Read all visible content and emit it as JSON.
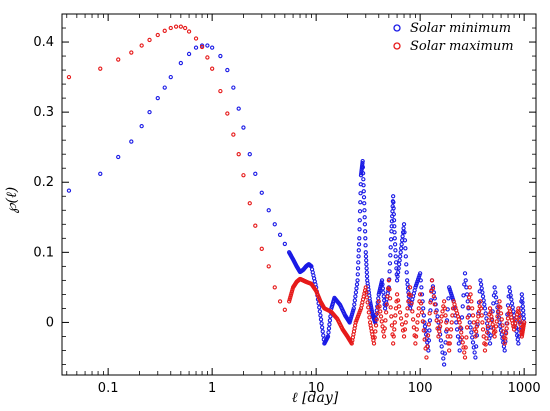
{
  "chart_data": {
    "type": "scatter",
    "xlabel": "ℓ [day]",
    "ylabel": "℘(ℓ)",
    "x_scale": "log",
    "xlim": [
      0.036,
      1300
    ],
    "ylim": [
      -0.075,
      0.44
    ],
    "x_ticks": [
      0.1,
      1,
      10,
      100,
      1000
    ],
    "x_tick_labels": [
      "0.1",
      "1",
      "10",
      "100",
      "1000"
    ],
    "y_ticks": [
      0,
      0.1,
      0.2,
      0.3,
      0.4
    ],
    "y_tick_labels": [
      "0",
      "0.1",
      "0.2",
      "0.3",
      "0.4"
    ],
    "grid": false,
    "legend_position": "top-right",
    "series": [
      {
        "name": "Solar minimum",
        "color": "#1a1ae6",
        "points": [
          [
            0.042,
            0.188
          ],
          [
            0.084,
            0.212
          ],
          [
            0.125,
            0.236
          ],
          [
            0.167,
            0.258
          ],
          [
            0.21,
            0.28
          ],
          [
            0.25,
            0.3
          ],
          [
            0.3,
            0.32
          ],
          [
            0.35,
            0.335
          ],
          [
            0.4,
            0.35
          ],
          [
            0.5,
            0.37
          ],
          [
            0.6,
            0.383
          ],
          [
            0.7,
            0.392
          ],
          [
            0.8,
            0.395
          ],
          [
            0.9,
            0.395
          ],
          [
            1.0,
            0.392
          ],
          [
            1.2,
            0.38
          ],
          [
            1.4,
            0.36
          ],
          [
            1.6,
            0.335
          ],
          [
            1.8,
            0.305
          ],
          [
            2.0,
            0.278
          ],
          [
            2.3,
            0.24
          ],
          [
            2.6,
            0.212
          ],
          [
            3.0,
            0.185
          ],
          [
            3.5,
            0.16
          ],
          [
            4.0,
            0.14
          ],
          [
            4.5,
            0.125
          ],
          [
            5.0,
            0.112
          ],
          [
            5.5,
            0.1
          ],
          [
            6.0,
            0.09
          ],
          [
            6.5,
            0.08
          ],
          [
            7.0,
            0.072
          ],
          [
            7.5,
            0.075
          ],
          [
            8.0,
            0.08
          ],
          [
            8.5,
            0.083
          ],
          [
            9.0,
            0.08
          ],
          [
            10.0,
            0.05
          ],
          [
            11.0,
            0.01
          ],
          [
            12.0,
            -0.03
          ],
          [
            13.0,
            -0.02
          ],
          [
            14.0,
            0.02
          ],
          [
            15.0,
            0.035
          ],
          [
            17.0,
            0.025
          ],
          [
            19.0,
            0.01
          ],
          [
            21.0,
            0.0
          ],
          [
            23.0,
            0.02
          ],
          [
            25.0,
            0.06
          ],
          [
            26.0,
            0.12
          ],
          [
            27.0,
            0.21
          ],
          [
            28.0,
            0.23
          ],
          [
            29.0,
            0.17
          ],
          [
            30.0,
            0.1
          ],
          [
            31.0,
            0.06
          ],
          [
            33.0,
            0.03
          ],
          [
            35.0,
            0.01
          ],
          [
            37.0,
            0.0
          ],
          [
            40.0,
            0.04
          ],
          [
            43.0,
            0.06
          ],
          [
            46.0,
            0.02
          ],
          [
            50.0,
            0.05
          ],
          [
            53.0,
            0.13
          ],
          [
            55.0,
            0.18
          ],
          [
            57.0,
            0.12
          ],
          [
            60.0,
            0.06
          ],
          [
            65.0,
            0.1
          ],
          [
            70.0,
            0.14
          ],
          [
            75.0,
            0.06
          ],
          [
            80.0,
            0.02
          ],
          [
            90.0,
            0.05
          ],
          [
            100.0,
            0.07
          ],
          [
            110.0,
            0.0
          ],
          [
            120.0,
            -0.04
          ],
          [
            130.0,
            0.06
          ],
          [
            150.0,
            0.0
          ],
          [
            170.0,
            -0.06
          ],
          [
            190.0,
            0.05
          ],
          [
            210.0,
            0.03
          ],
          [
            240.0,
            -0.04
          ],
          [
            270.0,
            0.07
          ],
          [
            300.0,
            0.0
          ],
          [
            340.0,
            -0.05
          ],
          [
            380.0,
            0.06
          ],
          [
            420.0,
            0.02
          ],
          [
            470.0,
            -0.03
          ],
          [
            520.0,
            0.05
          ],
          [
            580.0,
            0.0
          ],
          [
            650.0,
            -0.04
          ],
          [
            720.0,
            0.05
          ],
          [
            800.0,
            0.01
          ],
          [
            880.0,
            -0.03
          ],
          [
            950.0,
            0.04
          ],
          [
            1000.0,
            0.0
          ]
        ]
      },
      {
        "name": "Solar maximum",
        "color": "#e61a1a",
        "points": [
          [
            0.042,
            0.35
          ],
          [
            0.084,
            0.362
          ],
          [
            0.125,
            0.375
          ],
          [
            0.167,
            0.385
          ],
          [
            0.21,
            0.395
          ],
          [
            0.25,
            0.403
          ],
          [
            0.3,
            0.41
          ],
          [
            0.35,
            0.416
          ],
          [
            0.4,
            0.42
          ],
          [
            0.45,
            0.422
          ],
          [
            0.5,
            0.422
          ],
          [
            0.55,
            0.42
          ],
          [
            0.6,
            0.415
          ],
          [
            0.7,
            0.405
          ],
          [
            0.8,
            0.393
          ],
          [
            0.9,
            0.378
          ],
          [
            1.0,
            0.362
          ],
          [
            1.2,
            0.33
          ],
          [
            1.4,
            0.298
          ],
          [
            1.6,
            0.268
          ],
          [
            1.8,
            0.24
          ],
          [
            2.0,
            0.21
          ],
          [
            2.3,
            0.17
          ],
          [
            2.6,
            0.138
          ],
          [
            3.0,
            0.105
          ],
          [
            3.5,
            0.08
          ],
          [
            4.0,
            0.05
          ],
          [
            4.5,
            0.03
          ],
          [
            5.0,
            0.018
          ],
          [
            5.5,
            0.03
          ],
          [
            6.0,
            0.05
          ],
          [
            6.5,
            0.058
          ],
          [
            7.0,
            0.062
          ],
          [
            7.5,
            0.06
          ],
          [
            8.0,
            0.058
          ],
          [
            9.0,
            0.055
          ],
          [
            10.0,
            0.045
          ],
          [
            11.0,
            0.03
          ],
          [
            12.0,
            0.02
          ],
          [
            14.0,
            0.015
          ],
          [
            16.0,
            0.005
          ],
          [
            18.0,
            -0.01
          ],
          [
            20.0,
            -0.02
          ],
          [
            22.0,
            -0.03
          ],
          [
            24.0,
            0.0
          ],
          [
            27.0,
            0.02
          ],
          [
            30.0,
            0.05
          ],
          [
            33.0,
            0.0
          ],
          [
            36.0,
            -0.03
          ],
          [
            40.0,
            0.03
          ],
          [
            45.0,
            -0.02
          ],
          [
            50.0,
            0.06
          ],
          [
            55.0,
            -0.03
          ],
          [
            60.0,
            0.04
          ],
          [
            70.0,
            -0.02
          ],
          [
            80.0,
            0.05
          ],
          [
            90.0,
            -0.03
          ],
          [
            100.0,
            0.04
          ],
          [
            115.0,
            -0.05
          ],
          [
            130.0,
            0.06
          ],
          [
            150.0,
            -0.02
          ],
          [
            170.0,
            0.03
          ],
          [
            190.0,
            -0.04
          ],
          [
            210.0,
            0.03
          ],
          [
            240.0,
            0.0
          ],
          [
            270.0,
            -0.05
          ],
          [
            300.0,
            0.05
          ],
          [
            340.0,
            -0.02
          ],
          [
            380.0,
            0.03
          ],
          [
            420.0,
            -0.04
          ],
          [
            470.0,
            0.02
          ],
          [
            520.0,
            -0.02
          ],
          [
            580.0,
            0.03
          ],
          [
            650.0,
            -0.03
          ],
          [
            720.0,
            0.02
          ],
          [
            800.0,
            -0.01
          ],
          [
            880.0,
            0.02
          ],
          [
            950.0,
            -0.02
          ],
          [
            1000.0,
            0.0
          ]
        ]
      }
    ]
  }
}
